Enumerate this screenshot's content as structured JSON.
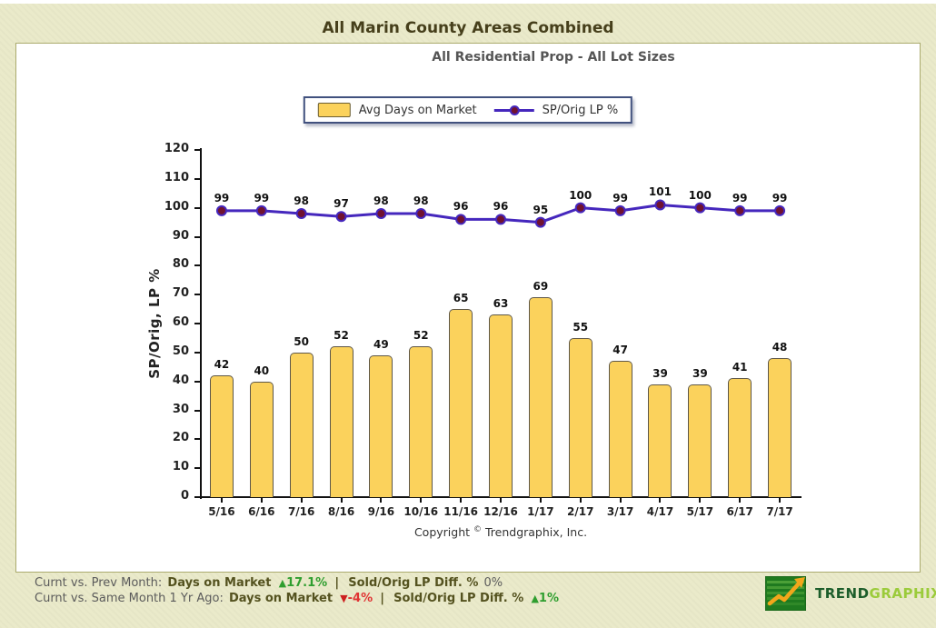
{
  "page": {
    "title": "All Marin County Areas Combined",
    "subtitle": "All Residential Prop - All Lot Sizes"
  },
  "chart_data": {
    "type": "combo-bar-line",
    "categories": [
      "5/16",
      "6/16",
      "7/16",
      "8/16",
      "9/16",
      "10/16",
      "11/16",
      "12/16",
      "1/17",
      "2/17",
      "3/17",
      "4/17",
      "5/17",
      "6/17",
      "7/17"
    ],
    "series": [
      {
        "name": "Avg Days on Market",
        "type": "bar",
        "values": [
          42,
          40,
          50,
          52,
          49,
          52,
          65,
          63,
          69,
          55,
          47,
          39,
          39,
          41,
          48
        ],
        "color": "#FBD25C"
      },
      {
        "name": "SP/Orig LP %",
        "type": "line",
        "values": [
          99,
          99,
          98,
          97,
          98,
          98,
          96,
          96,
          95,
          100,
          99,
          101,
          100,
          99,
          99
        ],
        "color": "#4527BD",
        "marker_color": "#701230"
      }
    ],
    "title": "All Marin County Areas Combined",
    "subtitle": "All Residential Prop - All Lot Sizes",
    "xlabel": "",
    "ylabel": "SP/Orig, LP %",
    "ylim": [
      0,
      120
    ],
    "yticks": [
      0,
      10,
      20,
      30,
      40,
      50,
      60,
      70,
      80,
      90,
      100,
      110,
      120
    ],
    "grid": false,
    "legend_position": "top"
  },
  "footer": {
    "copyright_pre": "Copyright",
    "copyright_sym": "©",
    "copyright_post": "Trendgraphix, Inc."
  },
  "status": {
    "sep": "|",
    "line1": {
      "prefix": "Curnt vs. Prev Month:",
      "metric1": "Days on Market",
      "delta1": "17.1%",
      "delta1_direction": "up",
      "metric2": "Sold/Orig LP Diff. %",
      "delta2": "0%",
      "delta2_direction": "none"
    },
    "line2": {
      "prefix": "Curnt vs. Same Month 1 Yr Ago:",
      "metric1": "Days on Market",
      "delta1": "-4%",
      "delta1_direction": "down",
      "metric2": "Sold/Orig LP Diff. %",
      "delta2": "1%",
      "delta2_direction": "up"
    }
  },
  "icons": {
    "up": "▲",
    "down": "▼"
  },
  "logo": {
    "trend": "TREND",
    "graphix": "GRAPHIX"
  },
  "colors": {
    "background": "#EAEACA",
    "bar_fill": "#FBD25C",
    "bar_border": "#5E5748",
    "line": "#4527BD",
    "marker": "#701230",
    "title_text": "#463F1B",
    "up_green": "#2F9E2F",
    "down_red": "#E03434",
    "legend_border": "#41517E"
  }
}
